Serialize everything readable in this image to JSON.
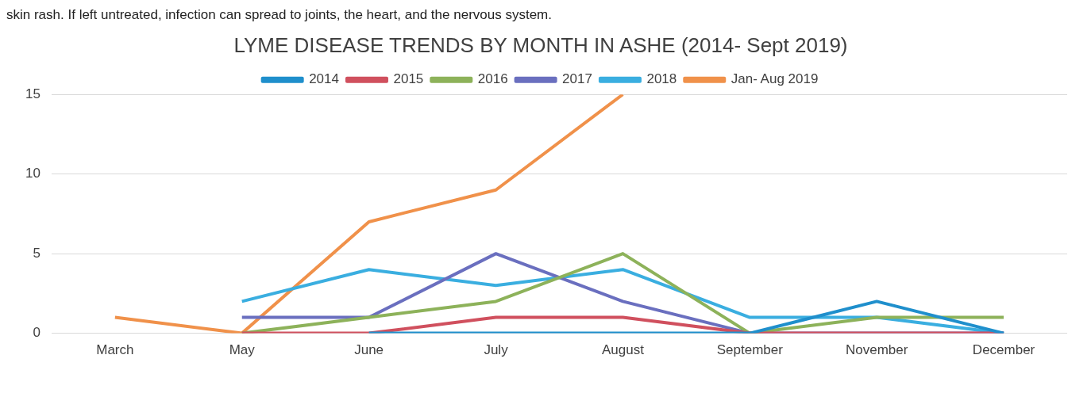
{
  "chart_data": {
    "type": "line",
    "title": "LYME DISEASE TRENDS BY MONTH IN ASHE (2014- Sept 2019)",
    "annotations": [
      "skin rash. If left untreated, infection can spread to joints, the heart, and the nervous system."
    ],
    "categories": [
      "March",
      "May",
      "June",
      "July",
      "August",
      "September",
      "November",
      "December"
    ],
    "series": [
      {
        "name": "2014",
        "color": "#1f8fcc",
        "values": [
          null,
          null,
          0,
          0,
          0,
          0,
          2,
          0
        ]
      },
      {
        "name": "2015",
        "color": "#d0505e",
        "values": [
          null,
          0,
          0,
          1,
          1,
          0,
          0,
          0
        ]
      },
      {
        "name": "2016",
        "color": "#8db25a",
        "values": [
          null,
          0,
          1,
          2,
          5,
          0,
          1,
          1
        ]
      },
      {
        "name": "2017",
        "color": "#6a6fbf",
        "values": [
          null,
          1,
          1,
          5,
          2,
          0,
          0,
          0
        ]
      },
      {
        "name": "2018",
        "color": "#3aaee0",
        "values": [
          null,
          2,
          4,
          3,
          4,
          1,
          1,
          0
        ]
      },
      {
        "name": "Jan- Aug 2019",
        "color": "#f0914a",
        "values": [
          1,
          0,
          7,
          9,
          15,
          null,
          null,
          null
        ]
      }
    ],
    "ylim": [
      0,
      15
    ],
    "yticks": [
      0,
      5,
      10,
      15
    ],
    "grid": "y",
    "legend": "top",
    "marker": "none",
    "line_style": "solid"
  }
}
